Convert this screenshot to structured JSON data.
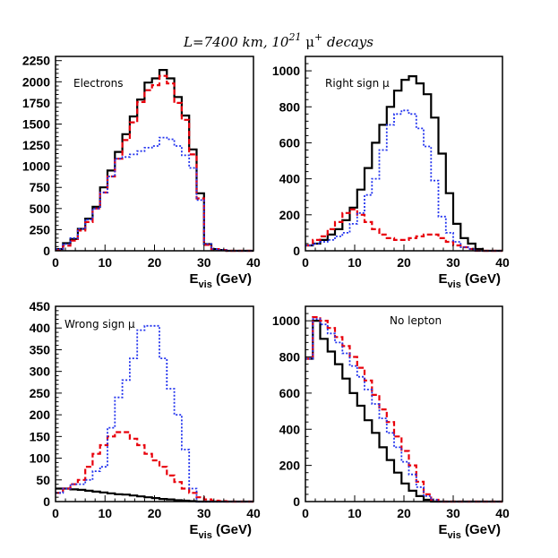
{
  "figure": {
    "title_main": "L=7400 km, 10",
    "title_exp": "21",
    "title_mu": " μ",
    "title_plus": "+",
    "title_tail": " decays"
  },
  "colors": {
    "black": "#000000",
    "red": "#e8000b",
    "blue": "#2233ee"
  },
  "chart_data": [
    {
      "type": "histogram",
      "label": "Electrons",
      "xlabel_main": "E",
      "xlabel_sub": "vis",
      "xlabel_unit": " (GeV)",
      "xlim": [
        0,
        40
      ],
      "ylim": [
        0,
        2300
      ],
      "xticks": [
        0,
        10,
        20,
        30,
        40
      ],
      "yticks": [
        0,
        250,
        500,
        750,
        1000,
        1250,
        1500,
        1750,
        2000,
        2250
      ],
      "bin_width": 1.5,
      "series": [
        {
          "name": "black",
          "style": "solid",
          "color": "#000000",
          "values": [
            20,
            90,
            140,
            260,
            380,
            520,
            750,
            950,
            1170,
            1380,
            1590,
            1790,
            1990,
            2040,
            2140,
            2040,
            1820,
            1600,
            1200,
            680,
            80,
            20,
            10,
            0,
            0,
            0,
            0
          ]
        },
        {
          "name": "red",
          "style": "dashed",
          "color": "#e8000b",
          "values": [
            10,
            60,
            120,
            240,
            340,
            500,
            690,
            880,
            1090,
            1310,
            1520,
            1760,
            1900,
            1960,
            2070,
            1980,
            1750,
            1550,
            1140,
            620,
            70,
            20,
            10,
            0,
            0,
            0,
            0
          ]
        },
        {
          "name": "blue",
          "style": "dotted",
          "color": "#2233ee",
          "values": [
            20,
            80,
            150,
            260,
            370,
            500,
            690,
            880,
            1090,
            1110,
            1140,
            1180,
            1220,
            1240,
            1340,
            1320,
            1240,
            1130,
            980,
            600,
            80,
            20,
            10,
            0,
            0,
            0,
            0
          ]
        }
      ]
    },
    {
      "type": "histogram",
      "label": "Right sign μ",
      "xlabel_main": "E",
      "xlabel_sub": "vis",
      "xlabel_unit": " (GeV)",
      "xlim": [
        0,
        40
      ],
      "ylim": [
        0,
        1080
      ],
      "xticks": [
        0,
        10,
        20,
        30,
        40
      ],
      "yticks": [
        0,
        200,
        400,
        600,
        800,
        1000
      ],
      "bin_width": 1.5,
      "series": [
        {
          "name": "black",
          "style": "solid",
          "color": "#000000",
          "values": [
            30,
            40,
            60,
            90,
            120,
            170,
            240,
            340,
            460,
            600,
            700,
            800,
            890,
            950,
            970,
            930,
            870,
            740,
            540,
            320,
            150,
            70,
            40,
            10,
            0,
            0,
            0
          ]
        },
        {
          "name": "red",
          "style": "dashed",
          "color": "#e8000b",
          "values": [
            30,
            60,
            80,
            120,
            160,
            210,
            230,
            200,
            160,
            120,
            90,
            70,
            60,
            60,
            70,
            80,
            90,
            90,
            70,
            50,
            30,
            20,
            10,
            0,
            0,
            0,
            0
          ]
        },
        {
          "name": "blue",
          "style": "dotted",
          "color": "#2233ee",
          "values": [
            30,
            40,
            50,
            60,
            80,
            100,
            150,
            210,
            310,
            400,
            560,
            700,
            760,
            780,
            760,
            680,
            580,
            390,
            190,
            100,
            50,
            20,
            10,
            0,
            0,
            0,
            0
          ]
        }
      ]
    },
    {
      "type": "histogram",
      "label": "Wrong sign μ",
      "xlabel_main": "E",
      "xlabel_sub": "vis",
      "xlabel_unit": " (GeV)",
      "xlim": [
        0,
        40
      ],
      "ylim": [
        0,
        450
      ],
      "xticks": [
        0,
        10,
        20,
        30,
        40
      ],
      "yticks": [
        0,
        50,
        100,
        150,
        200,
        250,
        300,
        350,
        400,
        450
      ],
      "bin_width": 1.5,
      "series": [
        {
          "name": "black",
          "style": "solid",
          "color": "#000000",
          "values": [
            30,
            30,
            28,
            27,
            25,
            23,
            21,
            19,
            17,
            16,
            14,
            12,
            10,
            8,
            6,
            5,
            3,
            2,
            1,
            0,
            0,
            0,
            0,
            0,
            0,
            0,
            0
          ]
        },
        {
          "name": "red",
          "style": "dashed",
          "color": "#e8000b",
          "values": [
            20,
            30,
            40,
            50,
            80,
            110,
            130,
            150,
            160,
            160,
            145,
            130,
            110,
            95,
            80,
            60,
            45,
            30,
            20,
            10,
            5,
            2,
            1,
            0,
            0,
            0,
            0
          ]
        },
        {
          "name": "blue",
          "style": "dotted",
          "color": "#2233ee",
          "values": [
            20,
            30,
            40,
            40,
            50,
            70,
            80,
            170,
            240,
            280,
            330,
            395,
            405,
            405,
            330,
            260,
            200,
            120,
            30,
            0,
            0,
            0,
            0,
            0,
            0,
            0,
            0
          ]
        }
      ]
    },
    {
      "type": "histogram",
      "label": "No lepton",
      "xlabel_main": "E",
      "xlabel_sub": "vis",
      "xlabel_unit": " (GeV)",
      "xlim": [
        0,
        40
      ],
      "ylim": [
        0,
        1080
      ],
      "xticks": [
        0,
        10,
        20,
        30,
        40
      ],
      "yticks": [
        0,
        200,
        400,
        600,
        800,
        1000
      ],
      "bin_width": 1.5,
      "series": [
        {
          "name": "black",
          "style": "solid",
          "color": "#000000",
          "values": [
            790,
            1000,
            900,
            830,
            760,
            680,
            600,
            530,
            450,
            380,
            300,
            230,
            160,
            100,
            60,
            30,
            10,
            0,
            0,
            0,
            0,
            0,
            0,
            0,
            0,
            0,
            0
          ]
        },
        {
          "name": "red",
          "style": "dashed",
          "color": "#e8000b",
          "values": [
            790,
            1020,
            1000,
            960,
            910,
            860,
            800,
            740,
            670,
            590,
            510,
            440,
            360,
            280,
            200,
            110,
            40,
            10,
            0,
            0,
            0,
            0,
            0,
            0,
            0,
            0,
            0
          ]
        },
        {
          "name": "blue",
          "style": "dotted",
          "color": "#2233ee",
          "values": [
            790,
            1010,
            980,
            930,
            880,
            820,
            750,
            690,
            620,
            540,
            460,
            380,
            300,
            220,
            150,
            80,
            30,
            10,
            0,
            0,
            0,
            0,
            0,
            0,
            0,
            0,
            0
          ]
        }
      ]
    }
  ]
}
